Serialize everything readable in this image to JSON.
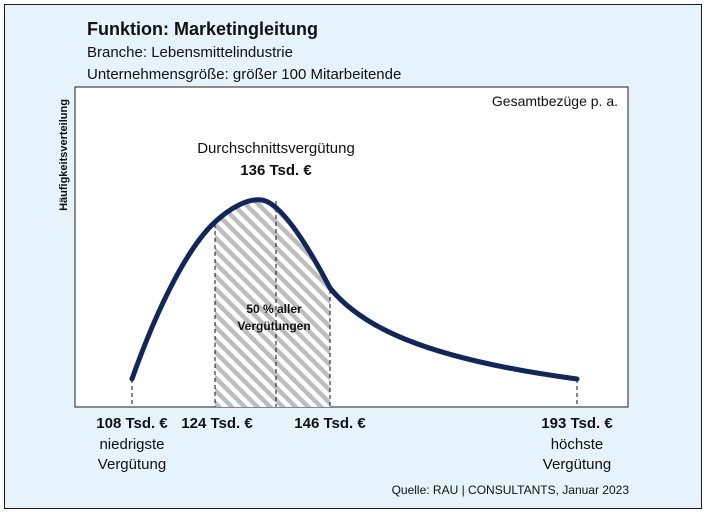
{
  "header": {
    "title": "Funktion: Marketingleitung",
    "branche": "Branche: Lebensmittelindustrie",
    "size": "Unternehmensgröße: größer 100 Mitarbeitende"
  },
  "source": "Quelle: RAU | CONSULTANTS, Januar 2023",
  "colors": {
    "curve": "#12265a",
    "background": "#e6f3fc",
    "plot_area": "#ffffff",
    "hatch": "#bdbdbd"
  },
  "chart_data": {
    "type": "area",
    "ylabel": "Häufigkeitsverteilung",
    "series_label": "Gesamtbezüge p. a.",
    "unit": "Tsd. €",
    "xlim": [
      108,
      193
    ],
    "min": 108,
    "q1": 124,
    "median": 136,
    "q3": 146,
    "max": 193,
    "average_label": "Durchschnittsvergütung",
    "average_value_label": "136 Tsd. €",
    "interquartile_label_line1": "50 % aller",
    "interquartile_label_line2": "Vergütungen",
    "ticks": [
      {
        "value": 108,
        "label": "108 Tsd. €",
        "sub1": "niedrigste",
        "sub2": "Vergütung"
      },
      {
        "value": 124,
        "label": "124 Tsd. €",
        "sub1": "",
        "sub2": ""
      },
      {
        "value": 146,
        "label": "146 Tsd. €",
        "sub1": "",
        "sub2": ""
      },
      {
        "value": 193,
        "label": "193 Tsd. €",
        "sub1": "höchste",
        "sub2": "Vergütung"
      }
    ]
  }
}
